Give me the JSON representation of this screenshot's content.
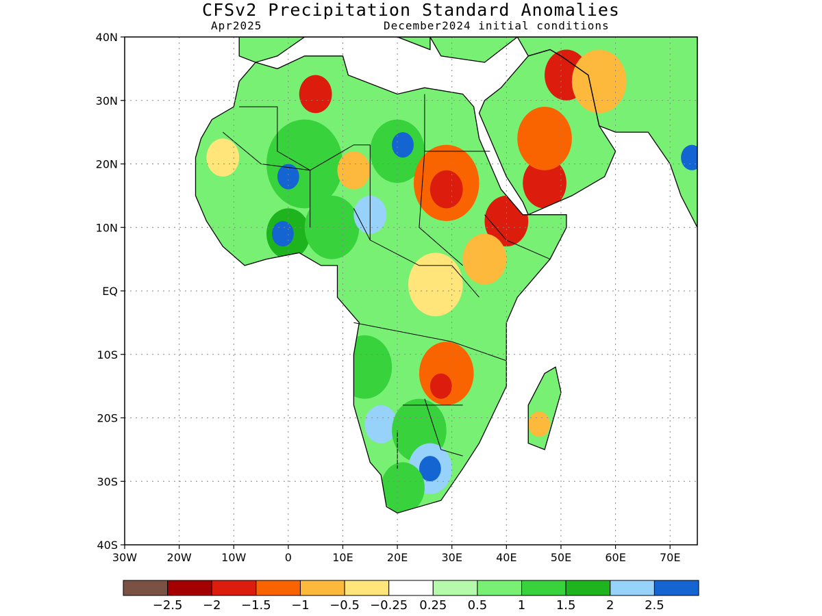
{
  "title": "CFSv2 Precipitation Standard Anomalies",
  "subtitle_left": "Apr2025",
  "subtitle_right": "December2024 initial conditions",
  "map": {
    "lon_range": [
      -30,
      75
    ],
    "lat_range": [
      -40,
      40
    ],
    "lat_ticks": [
      {
        "value": 40,
        "label": "40N"
      },
      {
        "value": 30,
        "label": "30N"
      },
      {
        "value": 20,
        "label": "20N"
      },
      {
        "value": 10,
        "label": "10N"
      },
      {
        "value": 0,
        "label": "EQ"
      },
      {
        "value": -10,
        "label": "10S"
      },
      {
        "value": -20,
        "label": "20S"
      },
      {
        "value": -30,
        "label": "30S"
      },
      {
        "value": -40,
        "label": "40S"
      }
    ],
    "lon_ticks": [
      {
        "value": -30,
        "label": "30W"
      },
      {
        "value": -20,
        "label": "20W"
      },
      {
        "value": -10,
        "label": "10W"
      },
      {
        "value": 0,
        "label": "0"
      },
      {
        "value": 10,
        "label": "10E"
      },
      {
        "value": 20,
        "label": "20E"
      },
      {
        "value": 30,
        "label": "30E"
      },
      {
        "value": 40,
        "label": "40E"
      },
      {
        "value": 50,
        "label": "50E"
      },
      {
        "value": 60,
        "label": "60E"
      },
      {
        "value": 70,
        "label": "70E"
      }
    ],
    "grid": "dotted"
  },
  "colorbar": {
    "colors": [
      "#7a5243",
      "#a50000",
      "#dc1c0d",
      "#fa6400",
      "#fdb93c",
      "#ffe57a",
      "#ffffff",
      "#b4faaa",
      "#78f073",
      "#37d23c",
      "#1eb41e",
      "#96d2fa",
      "#1464d2"
    ],
    "labels": [
      "-2.5",
      "-2",
      "-1.5",
      "-1",
      "-0.5",
      "-0.25",
      "0.25",
      "0.5",
      "1",
      "1.5",
      "2",
      "2.5"
    ]
  },
  "anomaly_blobs": [
    {
      "lon": 5,
      "lat": 31,
      "r": 3,
      "level": 2
    },
    {
      "lon": 3,
      "lat": 20,
      "r": 7,
      "level": 9
    },
    {
      "lon": 0,
      "lat": 18,
      "r": 2,
      "level": 12
    },
    {
      "lon": 20,
      "lat": 22,
      "r": 5,
      "level": 9
    },
    {
      "lon": 21,
      "lat": 23,
      "r": 2,
      "level": 12
    },
    {
      "lon": -12,
      "lat": 21,
      "r": 3,
      "level": 5
    },
    {
      "lon": 12,
      "lat": 19,
      "r": 3,
      "level": 4
    },
    {
      "lon": 29,
      "lat": 17,
      "r": 6,
      "level": 3
    },
    {
      "lon": 29,
      "lat": 16,
      "r": 3,
      "level": 2
    },
    {
      "lon": 47,
      "lat": 17,
      "r": 4,
      "level": 2
    },
    {
      "lon": 47,
      "lat": 24,
      "r": 5,
      "level": 3
    },
    {
      "lon": 51,
      "lat": 34,
      "r": 4,
      "level": 2
    },
    {
      "lon": 57,
      "lat": 33,
      "r": 5,
      "level": 4
    },
    {
      "lon": 40,
      "lat": 11,
      "r": 4,
      "level": 2
    },
    {
      "lon": 36,
      "lat": 5,
      "r": 4,
      "level": 4
    },
    {
      "lon": 0,
      "lat": 9,
      "r": 4,
      "level": 10
    },
    {
      "lon": -1,
      "lat": 9,
      "r": 2,
      "level": 12
    },
    {
      "lon": 8,
      "lat": 10,
      "r": 5,
      "level": 9
    },
    {
      "lon": 15,
      "lat": 12,
      "r": 3,
      "level": 11
    },
    {
      "lon": 20,
      "lat": 1,
      "r": 5,
      "level": 8
    },
    {
      "lon": 27,
      "lat": 1,
      "r": 5,
      "level": 5
    },
    {
      "lon": 14,
      "lat": -12,
      "r": 5,
      "level": 9
    },
    {
      "lon": 29,
      "lat": -13,
      "r": 5,
      "level": 3
    },
    {
      "lon": 28,
      "lat": -15,
      "r": 2,
      "level": 2
    },
    {
      "lon": 17,
      "lat": -21,
      "r": 3,
      "level": 11
    },
    {
      "lon": 24,
      "lat": -22,
      "r": 5,
      "level": 9
    },
    {
      "lon": 26,
      "lat": -28,
      "r": 4,
      "level": 11
    },
    {
      "lon": 26,
      "lat": -28,
      "r": 2,
      "level": 12
    },
    {
      "lon": 21,
      "lat": -31,
      "r": 4,
      "level": 9
    },
    {
      "lon": 46,
      "lat": -21,
      "r": 2,
      "level": 4
    },
    {
      "lon": 74,
      "lat": 21,
      "r": 2,
      "level": 12
    }
  ]
}
